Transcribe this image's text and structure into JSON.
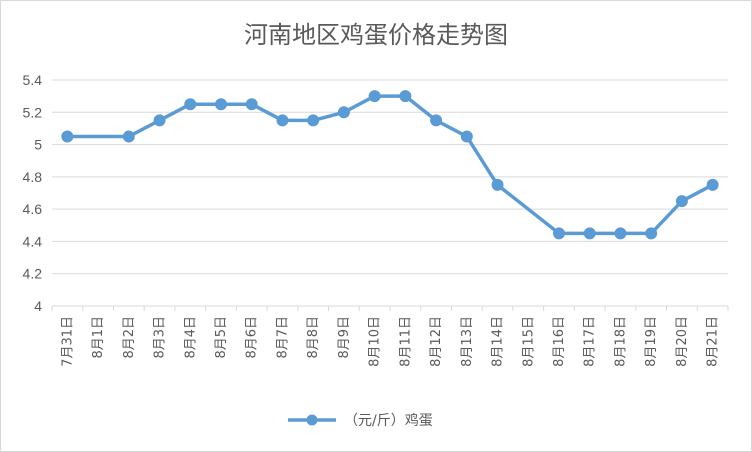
{
  "chart_data": {
    "type": "line",
    "title": "河南地区鸡蛋价格走势图",
    "categories": [
      "7月31日",
      "8月1日",
      "8月2日",
      "8月3日",
      "8月4日",
      "8月5日",
      "8月6日",
      "8月7日",
      "8月8日",
      "8月9日",
      "8月10日",
      "8月11日",
      "8月12日",
      "8月13日",
      "8月14日",
      "8月15日",
      "8月16日",
      "8月17日",
      "8月18日",
      "8月19日",
      "8月20日",
      "8月21日"
    ],
    "series": [
      {
        "name": "（元/斤）鸡蛋",
        "color": "#5b9bd5",
        "values": [
          5.05,
          null,
          5.05,
          5.15,
          5.25,
          5.25,
          5.25,
          5.15,
          5.15,
          5.2,
          5.3,
          5.3,
          5.15,
          5.05,
          4.75,
          null,
          4.45,
          4.45,
          4.45,
          4.45,
          4.65,
          4.75
        ]
      }
    ],
    "ylim": [
      4,
      5.4
    ],
    "yticks": [
      "4",
      "4.2",
      "4.4",
      "4.6",
      "4.8",
      "5",
      "5.2",
      "5.4"
    ],
    "grid": true,
    "legend_position": "bottom"
  }
}
